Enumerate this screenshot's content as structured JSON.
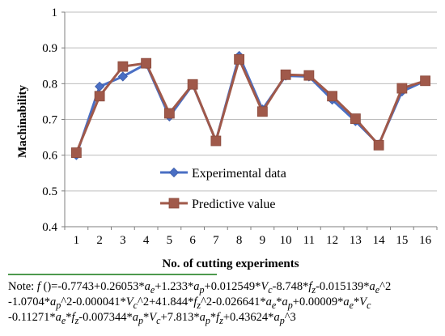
{
  "chart_data": {
    "type": "line",
    "title": "",
    "xlabel": "No. of cutting experiments",
    "ylabel": "Machinability",
    "ylim": [
      0.4,
      1
    ],
    "yticks": [
      "0.4",
      "0.5",
      "0.6",
      "0.7",
      "0.8",
      "0.9",
      "1"
    ],
    "categories": [
      "1",
      "2",
      "3",
      "4",
      "5",
      "6",
      "7",
      "8",
      "9",
      "10",
      "11",
      "12",
      "13",
      "14",
      "15",
      "16"
    ],
    "grid": "horizontal",
    "legend_position": "lower-center",
    "series": [
      {
        "name": "Experimental data",
        "color": "#4a6fc4",
        "marker": "diamond",
        "values": [
          0.6,
          0.792,
          0.82,
          0.855,
          0.708,
          0.797,
          0.64,
          0.878,
          0.728,
          0.822,
          0.82,
          0.755,
          0.695,
          0.63,
          0.778,
          0.808
        ]
      },
      {
        "name": "Predictive value",
        "color": "#a0594a",
        "marker": "square",
        "values": [
          0.607,
          0.765,
          0.848,
          0.857,
          0.717,
          0.798,
          0.64,
          0.868,
          0.722,
          0.825,
          0.823,
          0.765,
          0.702,
          0.628,
          0.787,
          0.808
        ]
      }
    ]
  },
  "note": {
    "line1": "Note: f ()=-0.7743+0.26053*ae+1.233*ap+0.012549*Vc-8.748*fz-0.015139*ae^2",
    "line2": "-1.0704*ap^2-0.000041*Vc^2+41.844*fz^2-0.026641*ae*ap+0.00009*ae*Vc",
    "line3": "-0.11271*ae*fz-0.007344*ap*Vc+7.813*ap*fz+0.43624*ap^3"
  }
}
